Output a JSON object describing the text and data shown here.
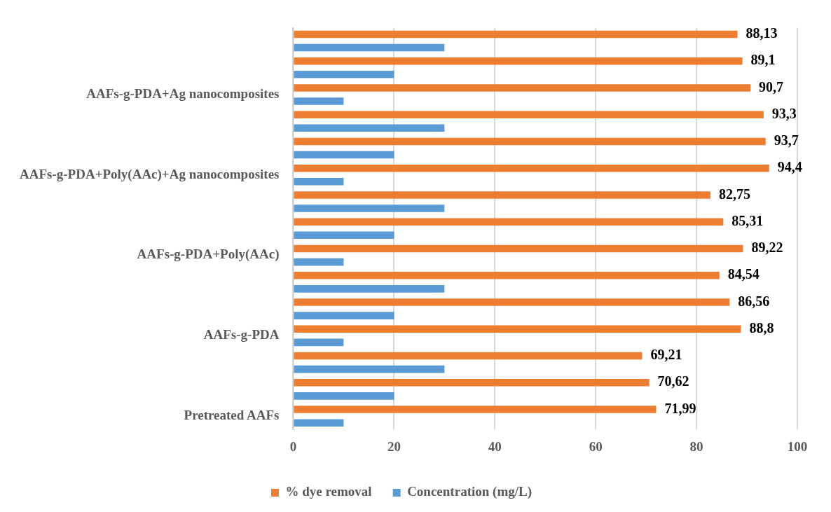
{
  "chart_data": {
    "type": "bar",
    "orientation": "horizontal",
    "categories": [
      null,
      null,
      "AAFs-g-PDA+Ag nanocomposites",
      null,
      null,
      "AAFs-g-PDA+Poly(AAc)+Ag nanocomposites",
      null,
      null,
      "AAFs-g-PDA+Poly(AAc)",
      null,
      null,
      "AAFs-g-PDA",
      null,
      null,
      "Pretreated AAFs"
    ],
    "series": [
      {
        "name": "% dye removal",
        "color": "#ed7d31",
        "values": [
          88.13,
          89.1,
          90.7,
          93.3,
          93.7,
          94.4,
          82.75,
          85.31,
          89.22,
          84.54,
          86.56,
          88.8,
          69.21,
          70.62,
          71.99
        ],
        "value_labels": [
          "88,13",
          "89,1",
          "90,7",
          "93,3",
          "93,7",
          "94,4",
          "82,75",
          "85,31",
          "89,22",
          "84,54",
          "86,56",
          "88,8",
          "69,21",
          "70,62",
          "71,99"
        ]
      },
      {
        "name": "Concentration (mg/L)",
        "color": "#5b9bd5",
        "values": [
          30,
          20,
          10,
          30,
          20,
          10,
          30,
          20,
          10,
          30,
          20,
          10,
          30,
          20,
          10
        ]
      }
    ],
    "xlim": [
      0,
      100
    ],
    "xticks": [
      0,
      20,
      40,
      60,
      80,
      100
    ],
    "grid": "x",
    "legend": "bottom"
  }
}
